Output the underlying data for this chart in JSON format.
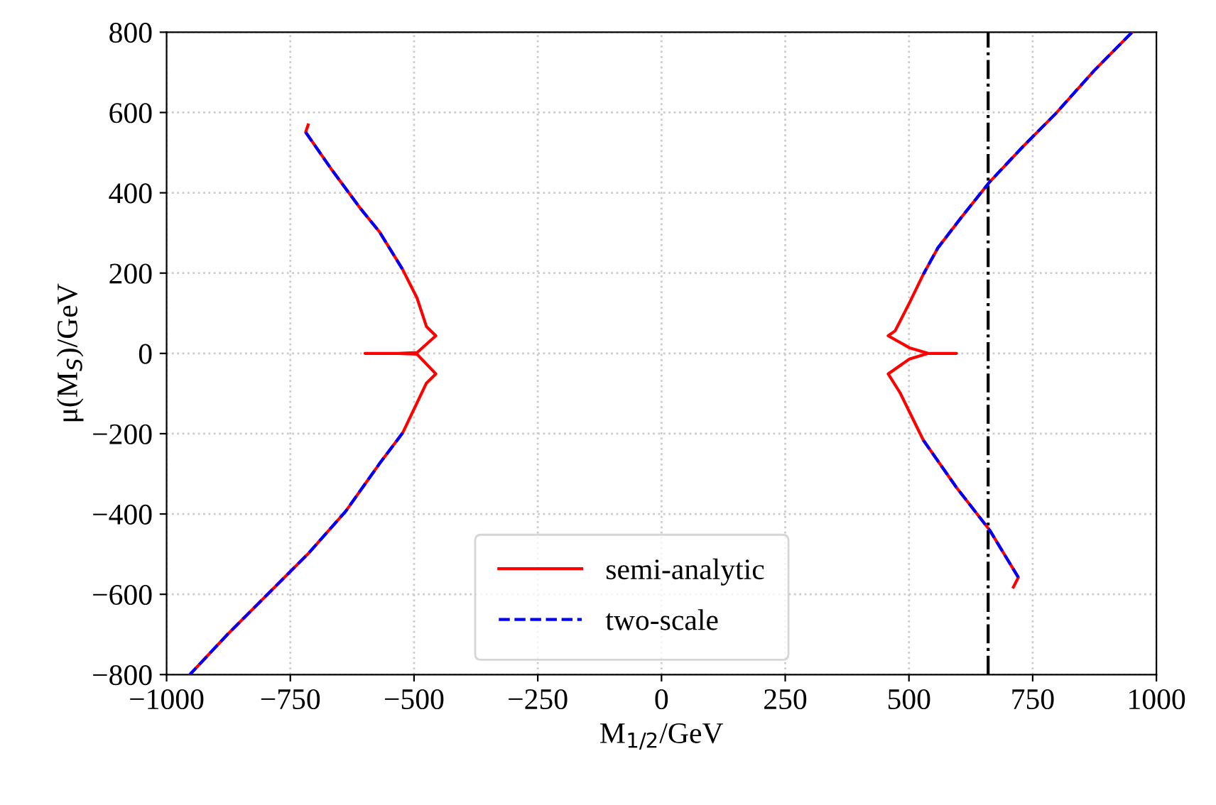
{
  "chart_data": {
    "type": "line",
    "xlabel": "M$_{1/2}$/GeV",
    "ylabel": "μ(M$_{S}$)/GeV",
    "xlim": [
      -1000,
      1000
    ],
    "ylim": [
      -800,
      800
    ],
    "xticks": [
      {
        "value": -1000,
        "label": "−1000"
      },
      {
        "value": -750,
        "label": "−750"
      },
      {
        "value": -500,
        "label": "−500"
      },
      {
        "value": -250,
        "label": "−250"
      },
      0,
      250,
      500,
      750,
      1000
    ],
    "yticks": [
      {
        "value": -800,
        "label": "−800"
      },
      {
        "value": -600,
        "label": "−600"
      },
      {
        "value": -400,
        "label": "−400"
      },
      {
        "value": -200,
        "label": "−200"
      },
      0,
      200,
      400,
      600,
      800
    ],
    "grid": true,
    "legend": "bottom",
    "marker": "none",
    "series": [
      {
        "name": "semi-analytic",
        "color": "#ff0000",
        "line_style": "solid",
        "x": [
          -714,
          -719,
          -666,
          -609,
          -570,
          -523,
          -494,
          -475,
          -456,
          -494,
          -532,
          -599,
          -532,
          -494,
          -456,
          -475,
          -523,
          -570,
          -638,
          -714,
          -791,
          -877,
          -953,
          null,
          950,
          874,
          797,
          731,
          663,
          606,
          558,
          529,
          501,
          472,
          458,
          501,
          539,
          596,
          539,
          501,
          458,
          482,
          529,
          596,
          663,
          721,
          711
        ],
        "values": [
          569,
          551,
          457,
          362,
          303,
          209,
          138,
          67,
          44,
          2,
          0,
          0,
          0,
          -2,
          -51,
          -74,
          -198,
          -275,
          -393,
          -499,
          -594,
          -700,
          -800,
          null,
          799,
          704,
          598,
          516,
          427,
          339,
          262,
          197,
          126,
          56,
          44,
          14,
          0,
          0,
          0,
          -14,
          -51,
          -98,
          -216,
          -334,
          -440,
          -558,
          -582
        ]
      },
      {
        "name": "two-scale",
        "color": "#0000ff",
        "line_style": "dashed",
        "x": [
          -719,
          -666,
          -609,
          -570,
          -523,
          null,
          -523,
          -570,
          -638,
          -714,
          -791,
          -877,
          -953,
          null,
          950,
          874,
          797,
          731,
          663,
          606,
          558,
          529,
          null,
          529,
          596,
          663,
          721
        ],
        "values": [
          551,
          457,
          362,
          303,
          209,
          null,
          -198,
          -275,
          -393,
          -499,
          -594,
          -700,
          -800,
          null,
          799,
          704,
          598,
          516,
          427,
          339,
          262,
          197,
          null,
          -216,
          -334,
          -440,
          -558
        ]
      }
    ],
    "ref_lines": [
      {
        "axis": "x",
        "value": 660,
        "color": "#000000",
        "line_style": "dashdot"
      }
    ]
  }
}
